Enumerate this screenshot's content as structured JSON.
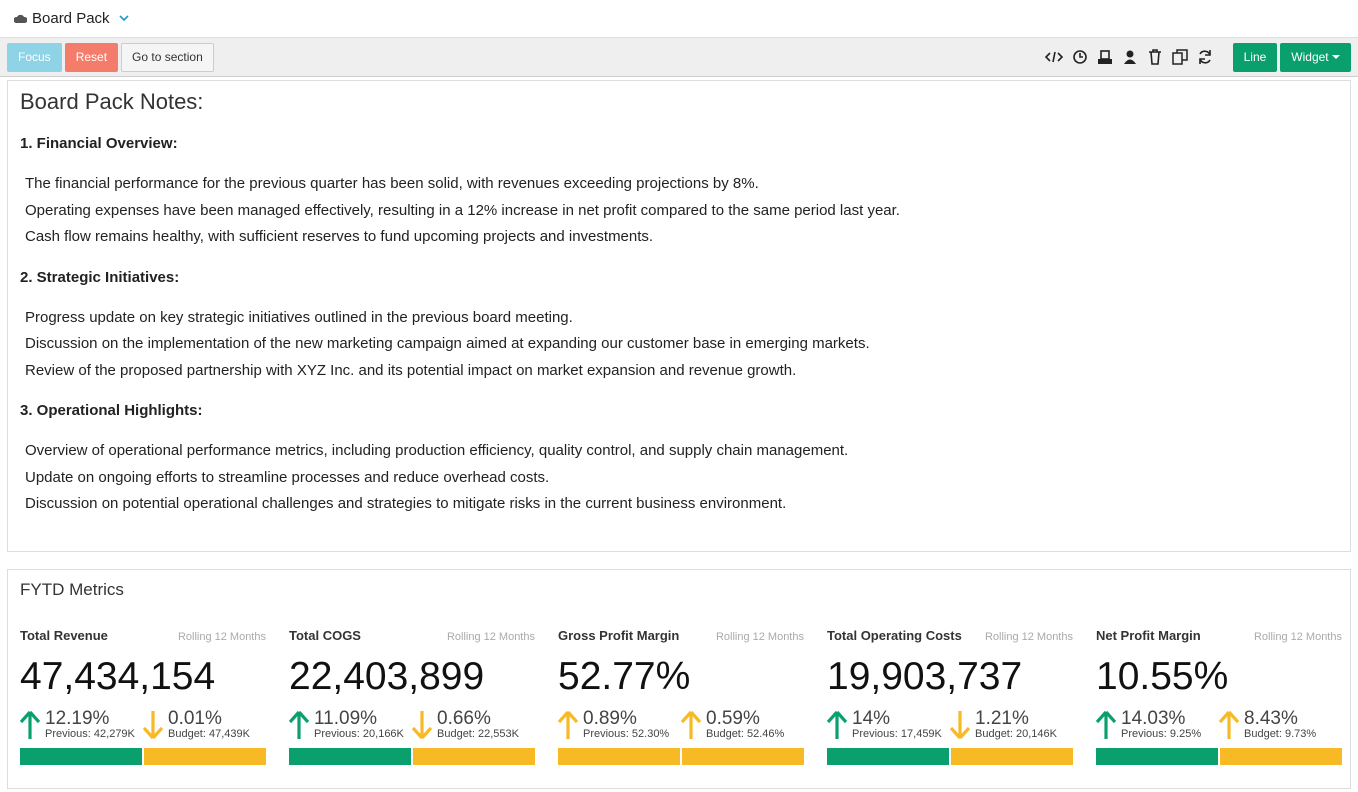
{
  "header": {
    "title": "Board Pack"
  },
  "toolbar": {
    "left_buttons": [
      "Focus",
      "Reset",
      "Go to section"
    ],
    "right_buttons": [
      "Line",
      "Widget"
    ]
  },
  "notes": {
    "title": "Board Pack Notes:",
    "sections": [
      {
        "heading": "1. Financial Overview:",
        "lines": [
          "The financial performance for the previous quarter has been solid, with revenues exceeding projections by 8%.",
          "Operating expenses have been managed effectively, resulting in a 12% increase in net profit compared to the same period last year.",
          "Cash flow remains healthy, with sufficient reserves to fund upcoming projects and investments."
        ]
      },
      {
        "heading": "2. Strategic Initiatives:",
        "lines": [
          "Progress update on key strategic initiatives outlined in the previous board meeting.",
          "Discussion on the implementation of the new marketing campaign aimed at expanding our customer base in emerging markets.",
          "Review of the proposed partnership with XYZ Inc. and its potential impact on market expansion and revenue growth."
        ]
      },
      {
        "heading": "3. Operational Highlights:",
        "lines": [
          "Overview of operational performance metrics, including production efficiency, quality control, and supply chain management.",
          "Update on ongoing efforts to streamline processes and reduce overhead costs.",
          "Discussion on potential operational challenges and strategies to mitigate risks in the current business environment."
        ]
      }
    ]
  },
  "metrics": {
    "title": "FYTD Metrics",
    "cards": [
      {
        "name": "Total Revenue",
        "period": "Rolling 12 Months",
        "value": "47,434,154",
        "changes": [
          {
            "pct": "12.19%",
            "note": "Previous: 42,279K",
            "direction": "up",
            "color": "#0aa06e"
          },
          {
            "pct": "0.01%",
            "note": "Budget: 47,439K",
            "direction": "down",
            "color": "#f7b924"
          }
        ]
      },
      {
        "name": "Total COGS",
        "period": "Rolling 12 Months",
        "value": "22,403,899",
        "changes": [
          {
            "pct": "11.09%",
            "note": "Previous: 20,166K",
            "direction": "up",
            "color": "#0aa06e"
          },
          {
            "pct": "0.66%",
            "note": "Budget: 22,553K",
            "direction": "down",
            "color": "#f7b924"
          }
        ]
      },
      {
        "name": "Gross Profit Margin",
        "period": "Rolling 12 Months",
        "value": "52.77%",
        "changes": [
          {
            "pct": "0.89%",
            "note": "Previous: 52.30%",
            "direction": "up",
            "color": "#f7b924"
          },
          {
            "pct": "0.59%",
            "note": "Budget: 52.46%",
            "direction": "up",
            "color": "#f7b924"
          }
        ]
      },
      {
        "name": "Total Operating Costs",
        "period": "Rolling 12 Months",
        "value": "19,903,737",
        "changes": [
          {
            "pct": "14%",
            "note": "Previous: 17,459K",
            "direction": "up",
            "color": "#0aa06e"
          },
          {
            "pct": "1.21%",
            "note": "Budget: 20,146K",
            "direction": "down",
            "color": "#f7b924"
          }
        ]
      },
      {
        "name": "Net Profit Margin",
        "period": "Rolling 12 Months",
        "value": "10.55%",
        "changes": [
          {
            "pct": "14.03%",
            "note": "Previous: 9.25%",
            "direction": "up",
            "color": "#0aa06e"
          },
          {
            "pct": "8.43%",
            "note": "Budget: 9.73%",
            "direction": "up",
            "color": "#f7b924"
          }
        ]
      }
    ]
  }
}
